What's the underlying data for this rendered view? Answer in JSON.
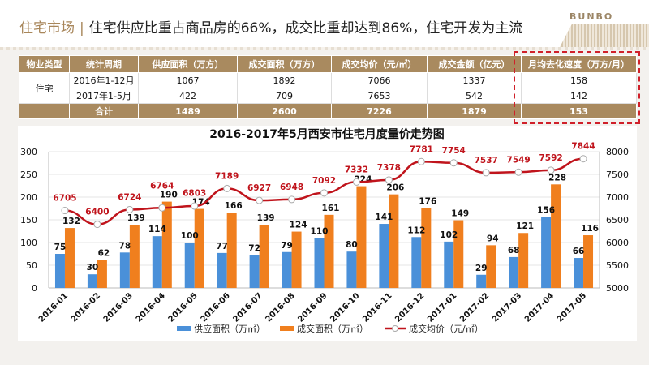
{
  "header": {
    "section": "住宅市场",
    "separator": "|",
    "headline": "住宅供应比重占商品房的66%，成交比重却达到86%，住宅开发为主流",
    "logo": "BUNBO"
  },
  "table": {
    "columns": [
      "物业类型",
      "统计周期",
      "供应面积（万方）",
      "成交面积（万方）",
      "成交均价（元/㎡）",
      "成交金额（亿元）",
      "月均去化速度（万方/月）"
    ],
    "type": "住宅",
    "rows": [
      [
        "2016年1-12月",
        "1067",
        "1892",
        "7066",
        "1337",
        "158"
      ],
      [
        "2017年1-5月",
        "422",
        "709",
        "7653",
        "542",
        "142"
      ]
    ],
    "total": [
      "合计",
      "1489",
      "2600",
      "7226",
      "1879",
      "153"
    ],
    "highlight_color": "#d0202a"
  },
  "chart_data": {
    "type": "bar+line",
    "title": "2016-2017年5月西安市住宅月度量价走势图",
    "categories": [
      "2016-01",
      "2016-02",
      "2016-03",
      "2016-04",
      "2016-05",
      "2016-06",
      "2016-07",
      "2016-08",
      "2016-09",
      "2016-10",
      "2016-11",
      "2016-12",
      "2017-01",
      "2017-02",
      "2017-03",
      "2017-04",
      "2017-05"
    ],
    "series": [
      {
        "name": "供应面积（万㎡）",
        "type": "bar",
        "axis": "left",
        "color": "#4a90d9",
        "values": [
          75,
          30,
          78,
          114,
          100,
          77,
          72,
          79,
          110,
          80,
          141,
          112,
          102,
          29,
          68,
          156,
          66
        ]
      },
      {
        "name": "成交面积（万㎡）",
        "type": "bar",
        "axis": "left",
        "color": "#f07f1e",
        "values": [
          132,
          62,
          139,
          190,
          174,
          166,
          139,
          124,
          161,
          224,
          206,
          176,
          149,
          94,
          121,
          228,
          116
        ]
      },
      {
        "name": "成交均价（元/㎡）",
        "type": "line",
        "axis": "right",
        "color": "#c0141c",
        "values": [
          6705,
          6400,
          6724,
          6764,
          6803,
          7189,
          6927,
          6948,
          7092,
          7332,
          7378,
          7781,
          7754,
          7537,
          7549,
          7592,
          7844
        ]
      }
    ],
    "y_left": {
      "min": 0,
      "max": 300,
      "ticks": [
        "0",
        "50",
        "100",
        "150",
        "200",
        "250",
        "300"
      ]
    },
    "y_right": {
      "min": 5000,
      "max": 8000,
      "ticks": [
        "5000",
        "5500",
        "6000",
        "6500",
        "7000",
        "7500",
        "8000"
      ]
    },
    "grid": true,
    "legend": "bottom"
  }
}
